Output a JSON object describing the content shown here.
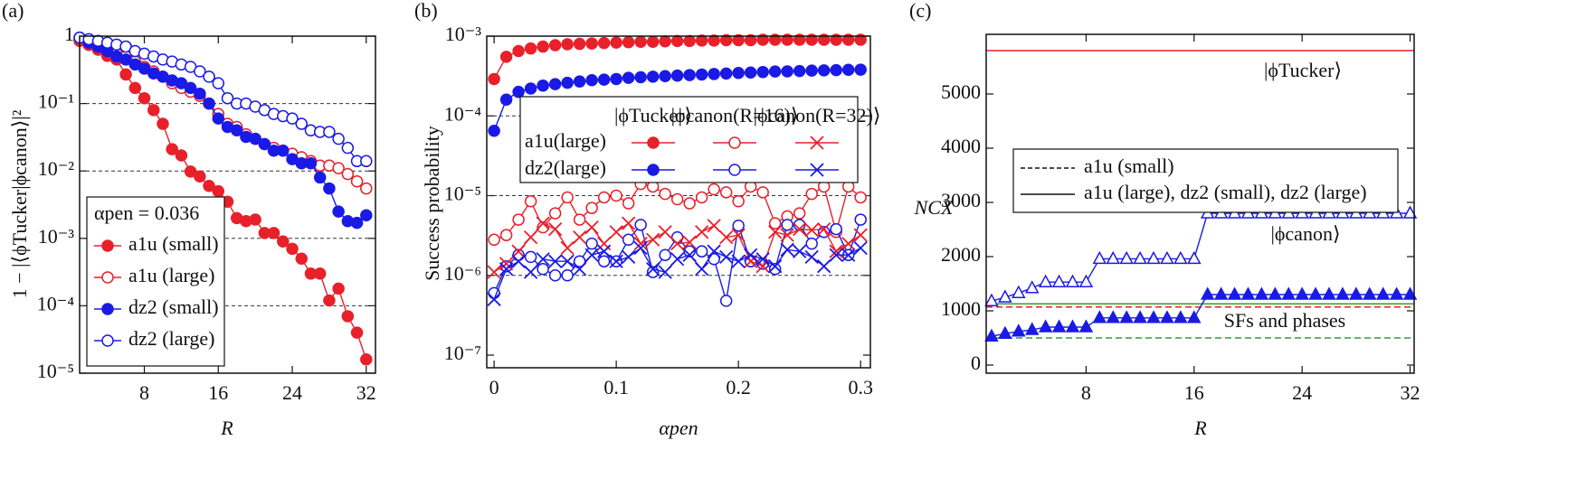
{
  "chart_data": [
    {
      "type": "line",
      "panel_label": "(a)",
      "xlabel": "R",
      "ylabel": "1 − |⟨ϕTucker|ϕcanon⟩|²",
      "ylog": true,
      "grid": true,
      "xlim": [
        1,
        33
      ],
      "ylim": [
        1e-05,
        1
      ],
      "xticks": [
        8,
        16,
        24,
        32
      ],
      "yticks": [
        {
          "value": 1e-05,
          "label": "10⁻⁵"
        },
        {
          "value": 0.0001,
          "label": "10⁻⁴"
        },
        {
          "value": 0.001,
          "label": "10⁻³"
        },
        {
          "value": 0.01,
          "label": "10⁻²"
        },
        {
          "value": 0.1,
          "label": "10⁻¹"
        },
        1
      ],
      "legend_title": "αpen = 0.036",
      "legend": "lower left",
      "x": [
        1,
        2,
        3,
        4,
        5,
        6,
        7,
        8,
        9,
        10,
        11,
        12,
        13,
        14,
        15,
        16,
        17,
        18,
        19,
        20,
        21,
        22,
        23,
        24,
        25,
        26,
        27,
        28,
        29,
        30,
        31,
        32
      ],
      "series": [
        {
          "name": "a1u (small)",
          "color": "#e8202a",
          "marker": "circle",
          "filled": true,
          "values": [
            0.85,
            0.74,
            0.63,
            0.51,
            0.45,
            0.27,
            0.17,
            0.12,
            0.08,
            0.05,
            0.021,
            0.017,
            0.0098,
            0.0083,
            0.006,
            0.005,
            0.0035,
            0.002,
            0.0018,
            0.0019,
            0.0012,
            0.0012,
            0.0009,
            0.0007,
            0.0005,
            0.0003,
            0.0003,
            0.00012,
            0.00018,
            7e-05,
            4e-05,
            1.6e-05
          ]
        },
        {
          "name": "a1u (large)",
          "color": "#e8202a",
          "marker": "circle",
          "filled": false,
          "values": [
            0.9,
            0.85,
            0.75,
            0.65,
            0.55,
            0.5,
            0.42,
            0.35,
            0.3,
            0.25,
            0.2,
            0.17,
            0.15,
            0.13,
            0.1,
            0.07,
            0.05,
            0.045,
            0.035,
            0.03,
            0.025,
            0.022,
            0.02,
            0.018,
            0.016,
            0.014,
            0.012,
            0.012,
            0.011,
            0.009,
            0.007,
            0.0055
          ]
        },
        {
          "name": "dz2 (small)",
          "color": "#1a1ae6",
          "marker": "circle",
          "filled": true,
          "values": [
            0.95,
            0.8,
            0.7,
            0.6,
            0.5,
            0.45,
            0.38,
            0.33,
            0.28,
            0.25,
            0.22,
            0.2,
            0.17,
            0.14,
            0.1,
            0.06,
            0.045,
            0.04,
            0.032,
            0.03,
            0.025,
            0.02,
            0.02,
            0.015,
            0.013,
            0.013,
            0.008,
            0.0055,
            0.0025,
            0.0018,
            0.0017,
            0.0022
          ]
        },
        {
          "name": "dz2 (large)",
          "color": "#1a1ae6",
          "marker": "circle",
          "filled": false,
          "values": [
            0.95,
            0.9,
            0.85,
            0.8,
            0.75,
            0.7,
            0.6,
            0.55,
            0.5,
            0.45,
            0.42,
            0.38,
            0.35,
            0.3,
            0.25,
            0.2,
            0.12,
            0.1,
            0.1,
            0.09,
            0.08,
            0.07,
            0.065,
            0.06,
            0.05,
            0.04,
            0.038,
            0.038,
            0.03,
            0.022,
            0.014,
            0.014
          ]
        }
      ]
    },
    {
      "type": "line",
      "panel_label": "(b)",
      "xlabel": "αpen",
      "ylabel": "Success probability",
      "ylog": true,
      "grid": true,
      "xlim": [
        -0.006,
        0.308
      ],
      "ylim": [
        1e-07,
        0.001
      ],
      "xticks": [
        0,
        0.1,
        0.2,
        0.3
      ],
      "yticks": [
        {
          "value": 1e-07,
          "label": "10⁻⁷"
        },
        {
          "value": 1e-06,
          "label": "10⁻⁶"
        },
        {
          "value": 1e-05,
          "label": "10⁻⁵"
        },
        {
          "value": 0.0001,
          "label": "10⁻⁴"
        },
        {
          "value": 0.001,
          "label": "10⁻³"
        }
      ],
      "legend_columns": [
        "|ϕTucker⟩",
        "|ϕcanon(R=16)⟩",
        "|ϕcanon(R=32)⟩"
      ],
      "legend_rows": [
        "a1u(large)",
        "dz2(large)"
      ],
      "x": [
        0,
        0.01,
        0.02,
        0.03,
        0.04,
        0.05,
        0.06,
        0.07,
        0.08,
        0.09,
        0.1,
        0.11,
        0.12,
        0.13,
        0.14,
        0.15,
        0.16,
        0.17,
        0.18,
        0.19,
        0.2,
        0.21,
        0.22,
        0.23,
        0.24,
        0.25,
        0.26,
        0.27,
        0.28,
        0.29,
        0.3
      ],
      "series": [
        {
          "legend_row": 0,
          "legend_column": 0,
          "color": "#e8202a",
          "marker": "circle",
          "filled": true,
          "values": [
            0.00029,
            0.00055,
            0.00065,
            0.0007,
            0.00074,
            0.00077,
            0.00079,
            0.0008,
            0.00081,
            0.00082,
            0.00083,
            0.00084,
            0.00085,
            0.00085,
            0.00086,
            0.00087,
            0.00087,
            0.00088,
            0.00088,
            0.00089,
            0.00089,
            0.00089,
            0.0009,
            0.0009,
            0.0009,
            0.0009,
            0.0009,
            0.0009,
            0.0009,
            0.0009,
            0.0009
          ]
        },
        {
          "legend_row": 1,
          "legend_column": 0,
          "color": "#1a1ae6",
          "marker": "circle",
          "filled": true,
          "values": [
            6.5e-05,
            0.00016,
            0.0002,
            0.00022,
            0.00024,
            0.00025,
            0.00026,
            0.00027,
            0.00028,
            0.000285,
            0.00029,
            0.0003,
            0.000305,
            0.00031,
            0.000315,
            0.00032,
            0.000325,
            0.00033,
            0.000335,
            0.00034,
            0.000345,
            0.00035,
            0.000355,
            0.00036,
            0.000362,
            0.000365,
            0.00037,
            0.000372,
            0.000375,
            0.000378,
            0.00038
          ]
        },
        {
          "legend_row": 0,
          "legend_column": 1,
          "color": "#e8202a",
          "marker": "circle",
          "filled": false,
          "values": [
            2.8e-06,
            3.2e-06,
            5e-06,
            8.5e-06,
            4e-06,
            6e-06,
            9.5e-06,
            5e-06,
            7e-06,
            9.5e-06,
            1e-05,
            8e-06,
            1.4e-05,
            1.3e-05,
            1.05e-05,
            9e-06,
            8e-06,
            9.5e-06,
            1.2e-05,
            1.1e-05,
            8.5e-06,
            1.3e-05,
            1.1e-05,
            4.5e-06,
            5.5e-06,
            6e-06,
            1.05e-05,
            1.3e-05,
            3.5e-06,
            1.3e-05,
            9.5e-06
          ]
        },
        {
          "legend_row": 1,
          "legend_column": 1,
          "color": "#1a1ae6",
          "marker": "circle",
          "filled": false,
          "values": [
            6e-07,
            1.3e-06,
            1.8e-06,
            1.7e-06,
            1.2e-06,
            1e-06,
            1e-06,
            1.5e-06,
            2.5e-06,
            1.5e-06,
            1.5e-06,
            2.8e-06,
            4.3e-06,
            1.1e-06,
            1.8e-06,
            3e-06,
            2e-06,
            2e-06,
            1.6e-06,
            4.8e-07,
            4.2e-06,
            1.5e-06,
            1.4e-06,
            1.2e-06,
            4.3e-06,
            4.3e-06,
            2.5e-06,
            3.5e-06,
            3.8e-06,
            1.8e-06,
            5e-06
          ]
        },
        {
          "legend_row": 0,
          "legend_column": 2,
          "color": "#e8202a",
          "marker": "cross",
          "filled": false,
          "values": [
            1.1e-06,
            1.4e-06,
            2e-06,
            3e-06,
            4.5e-06,
            3.8e-06,
            2.2e-06,
            3e-06,
            4e-06,
            2.5e-06,
            3.5e-06,
            4.5e-06,
            2.5e-06,
            2.8e-06,
            3.5e-06,
            2.5e-06,
            2.6e-06,
            3.5e-06,
            4.2e-06,
            3e-06,
            3.2e-06,
            1.5e-06,
            1.3e-06,
            3.5e-06,
            3.2e-06,
            3.8e-06,
            3.7e-06,
            3.8e-06,
            2e-06,
            2.5e-06,
            3.2e-06
          ]
        },
        {
          "legend_row": 1,
          "legend_column": 2,
          "color": "#1a1ae6",
          "marker": "cross",
          "filled": false,
          "values": [
            5e-07,
            1.2e-06,
            1.5e-06,
            1.1e-06,
            1.6e-06,
            1.5e-06,
            1.5e-06,
            1.2e-06,
            1.8e-06,
            2e-06,
            1.5e-06,
            1.7e-06,
            2.2e-06,
            1.2e-06,
            1.1e-06,
            1.6e-06,
            1.8e-06,
            1.2e-06,
            2e-06,
            1.7e-06,
            1.5e-06,
            1.8e-06,
            1.6e-06,
            1.3e-06,
            2.1e-06,
            2e-06,
            1.7e-06,
            1.3e-06,
            1.8e-06,
            1.8e-06,
            2.2e-06
          ]
        }
      ]
    },
    {
      "type": "line",
      "panel_label": "(c)",
      "xlabel": "R",
      "ylabel": "NCX",
      "ylog": false,
      "grid": false,
      "xlim": [
        0.6,
        32.3
      ],
      "ylim": [
        -150,
        6100
      ],
      "xticks": [
        8,
        16,
        24,
        32
      ],
      "yticks": [
        0,
        1000,
        2000,
        3000,
        4000,
        5000
      ],
      "legend_entries": [
        {
          "label": "a1u (small)",
          "style": "dashed"
        },
        {
          "label": "a1u (large), dz2 (small), dz2 (large)",
          "style": "solid"
        }
      ],
      "hlines": [
        {
          "value": 5800,
          "color": "#e8202a",
          "style": "solid"
        },
        {
          "value": 1070,
          "color": "#e8202a",
          "style": "dashed"
        },
        {
          "value": 1130,
          "color": "#2ca02c",
          "style": "solid"
        },
        {
          "value": 500,
          "color": "#2ca02c",
          "style": "dashed"
        }
      ],
      "annotations": [
        {
          "text": "|ϕTucker⟩",
          "color": "#e8202a"
        },
        {
          "text": "|ϕcanon⟩",
          "color": "#1a1ae6"
        },
        {
          "text": "SFs and phases",
          "color": "#2ca02c"
        }
      ],
      "x": [
        1,
        2,
        3,
        4,
        5,
        6,
        7,
        8,
        9,
        10,
        11,
        12,
        13,
        14,
        15,
        16,
        17,
        18,
        19,
        20,
        21,
        22,
        23,
        24,
        25,
        26,
        27,
        28,
        29,
        30,
        31,
        32
      ],
      "series": [
        {
          "color": "#1a1ae6",
          "marker": "triangle",
          "filled": false,
          "values": [
            1180,
            1250,
            1330,
            1420,
            1530,
            1530,
            1530,
            1530,
            1960,
            1960,
            1960,
            1960,
            1960,
            1960,
            1960,
            1960,
            2800,
            2800,
            2800,
            2800,
            2800,
            2800,
            2800,
            2800,
            2800,
            2800,
            2800,
            2800,
            2800,
            2800,
            2800,
            2800
          ]
        },
        {
          "color": "#1a1ae6",
          "marker": "triangle",
          "filled": true,
          "values": [
            530,
            580,
            620,
            650,
            700,
            700,
            700,
            700,
            870,
            870,
            870,
            870,
            870,
            870,
            870,
            870,
            1300,
            1300,
            1300,
            1300,
            1300,
            1300,
            1300,
            1300,
            1300,
            1300,
            1300,
            1300,
            1300,
            1300,
            1300,
            1300
          ]
        }
      ]
    }
  ]
}
